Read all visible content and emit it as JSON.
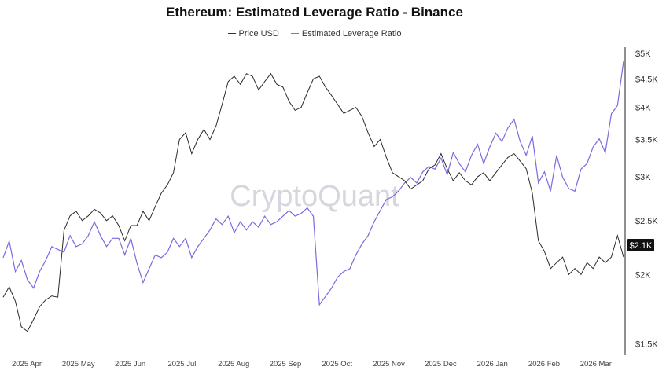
{
  "title": "Ethereum: Estimated Leverage Ratio - Binance",
  "legend": [
    {
      "name": "Price USD",
      "color": "#333333"
    },
    {
      "name": "Estimated Leverage Ratio",
      "color": "#7a6ae0"
    }
  ],
  "watermark": "CryptoQuant",
  "current_price_label": "$2.1K",
  "chart_data": {
    "type": "line",
    "title": "Ethereum: Estimated Leverage Ratio - Binance",
    "y_axis": {
      "scale": "log",
      "ticks": [
        "$5K",
        "$4.5K",
        "$4K",
        "$3.5K",
        "$3K",
        "$2.5K",
        "$2K",
        "$1.5K"
      ],
      "tick_values": [
        5000,
        4500,
        4000,
        3500,
        3000,
        2500,
        2000,
        1500
      ],
      "range": [
        1450,
        5100
      ]
    },
    "x_axis": {
      "ticks": [
        "2025 Apr",
        "2025 May",
        "2025 Jun",
        "2025 Jul",
        "2025 Aug",
        "2025 Sep",
        "2025 Oct",
        "2025 Nov",
        "2025 Dec",
        "2026 Jan",
        "2026 Feb",
        "2026 Mar"
      ]
    },
    "grid": false,
    "series": [
      {
        "name": "Price USD",
        "color": "#333333",
        "values": [
          1820,
          1900,
          1790,
          1610,
          1580,
          1660,
          1750,
          1800,
          1830,
          1820,
          2400,
          2550,
          2600,
          2500,
          2550,
          2620,
          2580,
          2500,
          2550,
          2450,
          2300,
          2450,
          2450,
          2600,
          2500,
          2650,
          2800,
          2900,
          3050,
          3500,
          3600,
          3300,
          3500,
          3650,
          3500,
          3700,
          4050,
          4450,
          4550,
          4400,
          4600,
          4550,
          4300,
          4450,
          4600,
          4400,
          4350,
          4100,
          3950,
          4000,
          4250,
          4500,
          4550,
          4350,
          4200,
          4050,
          3900,
          3950,
          4000,
          3850,
          3600,
          3400,
          3500,
          3250,
          3050,
          3000,
          2950,
          2850,
          2900,
          2950,
          3100,
          3150,
          3300,
          3100,
          2950,
          3050,
          2950,
          2900,
          3000,
          3050,
          2950,
          3050,
          3150,
          3250,
          3300,
          3200,
          3100,
          2800,
          2300,
          2200,
          2050,
          2100,
          2150,
          2000,
          2050,
          2000,
          2100,
          2050,
          2150,
          2100,
          2150,
          2350,
          2150
        ]
      },
      {
        "name": "Estimated Leverage Ratio",
        "color": "#7a6ae0",
        "values": [
          0.29,
          0.35,
          0.24,
          0.28,
          0.21,
          0.18,
          0.24,
          0.28,
          0.33,
          0.32,
          0.31,
          0.37,
          0.33,
          0.34,
          0.37,
          0.42,
          0.37,
          0.33,
          0.36,
          0.36,
          0.3,
          0.36,
          0.27,
          0.2,
          0.25,
          0.3,
          0.29,
          0.31,
          0.36,
          0.33,
          0.36,
          0.29,
          0.33,
          0.36,
          0.39,
          0.43,
          0.41,
          0.44,
          0.38,
          0.42,
          0.39,
          0.42,
          0.4,
          0.44,
          0.41,
          0.42,
          0.44,
          0.46,
          0.44,
          0.45,
          0.47,
          0.44,
          0.12,
          0.15,
          0.18,
          0.22,
          0.24,
          0.25,
          0.3,
          0.34,
          0.37,
          0.42,
          0.46,
          0.5,
          0.51,
          0.53,
          0.56,
          0.58,
          0.56,
          0.6,
          0.62,
          0.61,
          0.65,
          0.59,
          0.67,
          0.63,
          0.6,
          0.66,
          0.7,
          0.63,
          0.69,
          0.74,
          0.71,
          0.76,
          0.79,
          0.71,
          0.66,
          0.73,
          0.56,
          0.6,
          0.53,
          0.66,
          0.58,
          0.54,
          0.53,
          0.61,
          0.63,
          0.69,
          0.72,
          0.67,
          0.81,
          0.84,
          1.0
        ]
      }
    ]
  }
}
